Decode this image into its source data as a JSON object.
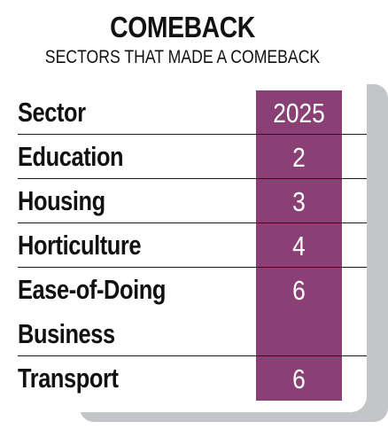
{
  "title": "COMEBACK",
  "subtitle": "SECTORS THAT MADE A COMEBACK",
  "colors": {
    "accent_column": "#8a3f75",
    "shadow": "#c3c5c9",
    "rule": "#1a1a1a"
  },
  "chart_data": {
    "type": "table",
    "columns": [
      "Sector",
      "2025"
    ],
    "rows": [
      {
        "sector_lines": [
          "Education"
        ],
        "value": "2"
      },
      {
        "sector_lines": [
          "Housing"
        ],
        "value": "3"
      },
      {
        "sector_lines": [
          "Horticulture"
        ],
        "value": "4"
      },
      {
        "sector_lines": [
          "Ease-of-Doing",
          "Business"
        ],
        "value": "6"
      },
      {
        "sector_lines": [
          "Transport"
        ],
        "value": "6"
      }
    ]
  }
}
